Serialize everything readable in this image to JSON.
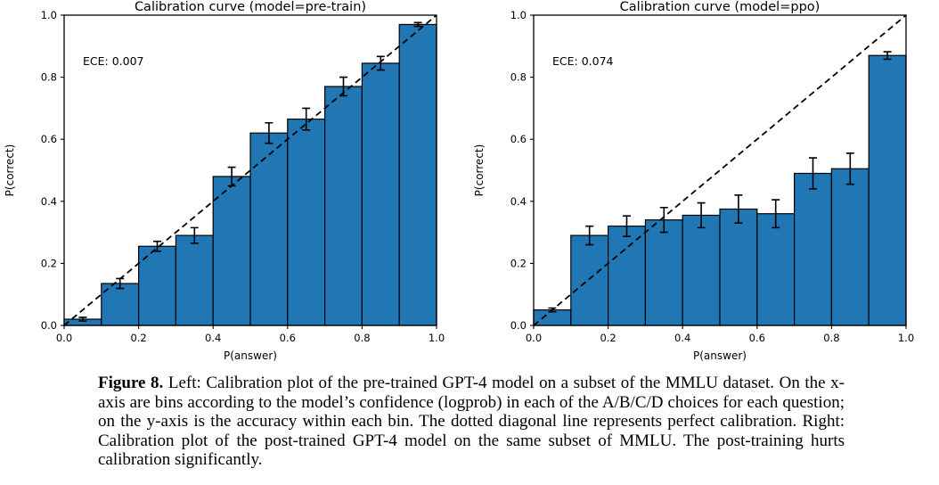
{
  "figure": {
    "caption_label": "Figure 8.",
    "caption_text": " Left: Calibration plot of the pre-trained GPT-4 model on a subset of the MMLU dataset. On the x-axis are bins according to the model’s confidence (logprob) in each of the A/B/C/D choices for each question; on the y-axis is the accuracy within each bin. The dotted diagonal line represents perfect calibration. Right: Calibration plot of the post-trained GPT-4 model on the same subset of MMLU. The post-training hurts calibration significantly."
  },
  "chart_data": [
    {
      "type": "bar",
      "title": "Calibration curve (model=pre-train)",
      "annotation": "ECE: 0.007",
      "xlabel": "P(answer)",
      "ylabel": "P(correct)",
      "xlim": [
        0,
        1
      ],
      "ylim": [
        0,
        1
      ],
      "xticks": [
        0,
        0.2,
        0.4,
        0.6,
        0.8,
        1.0
      ],
      "yticks": [
        0,
        0.2,
        0.4,
        0.6,
        0.8,
        1.0
      ],
      "grid": false,
      "legend_position": "none",
      "bin_width": 0.1,
      "bin_centers": [
        0.05,
        0.15,
        0.25,
        0.35,
        0.45,
        0.55,
        0.65,
        0.75,
        0.85,
        0.95
      ],
      "values": [
        0.02,
        0.135,
        0.255,
        0.29,
        0.48,
        0.62,
        0.665,
        0.77,
        0.845,
        0.97
      ],
      "errors": [
        0.006,
        0.016,
        0.016,
        0.025,
        0.03,
        0.033,
        0.035,
        0.03,
        0.022,
        0.006
      ],
      "diagonal_line": true,
      "bar_color": "#2077b4",
      "bar_edge_color": "#000000"
    },
    {
      "type": "bar",
      "title": "Calibration curve (model=ppo)",
      "annotation": "ECE: 0.074",
      "xlabel": "P(answer)",
      "ylabel": "P(correct)",
      "xlim": [
        0,
        1
      ],
      "ylim": [
        0,
        1
      ],
      "xticks": [
        0,
        0.2,
        0.4,
        0.6,
        0.8,
        1.0
      ],
      "yticks": [
        0,
        0.2,
        0.4,
        0.6,
        0.8,
        1.0
      ],
      "grid": false,
      "legend_position": "none",
      "bin_width": 0.1,
      "bin_centers": [
        0.05,
        0.15,
        0.25,
        0.35,
        0.45,
        0.55,
        0.65,
        0.75,
        0.85,
        0.95
      ],
      "values": [
        0.05,
        0.29,
        0.32,
        0.34,
        0.355,
        0.375,
        0.36,
        0.49,
        0.505,
        0.87
      ],
      "errors": [
        0.006,
        0.03,
        0.033,
        0.04,
        0.04,
        0.045,
        0.045,
        0.05,
        0.05,
        0.012
      ],
      "diagonal_line": true,
      "bar_color": "#2077b4",
      "bar_edge_color": "#000000"
    }
  ]
}
